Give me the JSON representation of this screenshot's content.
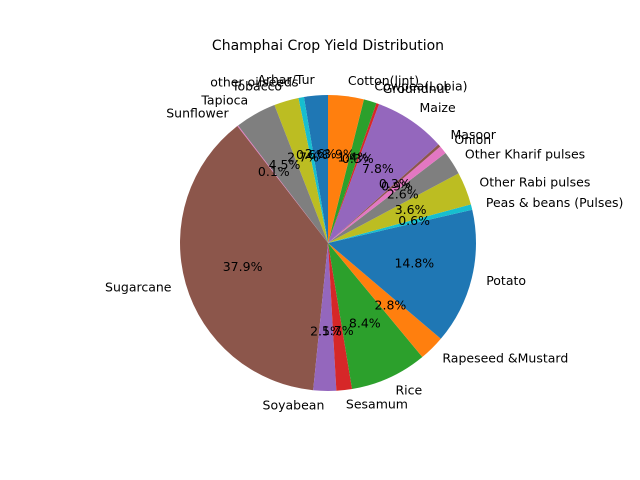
{
  "chart_data": {
    "type": "pie",
    "title": "Champhai Crop Yield Distribution",
    "start_angle_deg": 90,
    "direction": "counterclockwise",
    "slices": [
      {
        "label": "Arhar/Tur",
        "value": 2.6,
        "pct_text": "2.6%",
        "color": "#1f77b4"
      },
      {
        "label": "other oilseeds",
        "value": 0.6,
        "pct_text": "0.6%",
        "color": "#17becf"
      },
      {
        "label": "Tobacco",
        "value": 2.7,
        "pct_text": "2.7%",
        "color": "#bcbd22"
      },
      {
        "label": "Tapioca",
        "value": 4.5,
        "pct_text": "4.5%",
        "color": "#7f7f7f"
      },
      {
        "label": "Sunflower",
        "value": 0.1,
        "pct_text": "0.1%",
        "color": "#e377c2"
      },
      {
        "label": "Sugarcane",
        "value": 37.9,
        "pct_text": "37.9%",
        "color": "#8c564b"
      },
      {
        "label": "Soyabean",
        "value": 2.5,
        "pct_text": "2.5%",
        "color": "#9467bd"
      },
      {
        "label": "Sesamum",
        "value": 1.7,
        "pct_text": "1.7%",
        "color": "#d62728"
      },
      {
        "label": "Rice",
        "value": 8.4,
        "pct_text": "8.4%",
        "color": "#2ca02c"
      },
      {
        "label": "Rapeseed &Mustard",
        "value": 2.8,
        "pct_text": "2.8%",
        "color": "#ff7f0e"
      },
      {
        "label": "Potato",
        "value": 14.8,
        "pct_text": "14.8%",
        "color": "#1f77b4"
      },
      {
        "label": "Peas & beans (Pulses)",
        "value": 0.6,
        "pct_text": "0.6%",
        "color": "#17becf"
      },
      {
        "label": "Other Rabi pulses",
        "value": 3.6,
        "pct_text": "3.6%",
        "color": "#bcbd22"
      },
      {
        "label": "Other Kharif pulses",
        "value": 2.6,
        "pct_text": "2.6%",
        "color": "#7f7f7f"
      },
      {
        "label": "Onion",
        "value": 0.9,
        "pct_text": "0.9%",
        "color": "#e377c2"
      },
      {
        "label": "Masoor",
        "value": 0.3,
        "pct_text": "0.3%",
        "color": "#8c564b"
      },
      {
        "label": "Maize",
        "value": 7.8,
        "pct_text": "7.8%",
        "color": "#9467bd"
      },
      {
        "label": "Groundnut",
        "value": 0.3,
        "pct_text": "0.3%",
        "color": "#d62728"
      },
      {
        "label": "Cowpea(Lobia)",
        "value": 1.4,
        "pct_text": "1.4%",
        "color": "#2ca02c"
      },
      {
        "label": "Cotton(lint)",
        "value": 3.9,
        "pct_text": "3.9%",
        "color": "#ff7f0e"
      }
    ]
  }
}
